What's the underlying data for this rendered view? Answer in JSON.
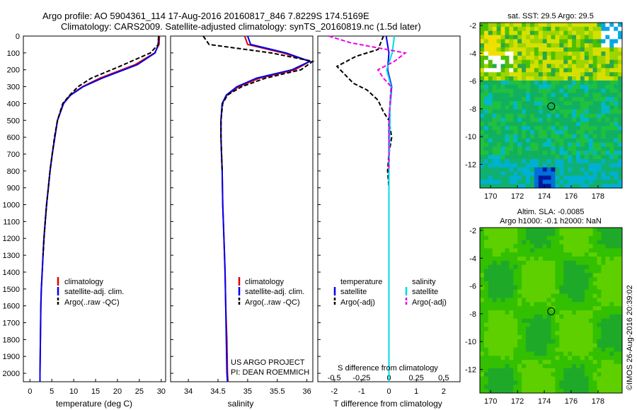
{
  "title": {
    "line1": "Argo profile: AO 5904361_114 17-Aug-2016 20160817_846 7.8229S 174.5169E",
    "line2": "Climatology: CARS2009. Satellite-adjusted climatology: synTS_20160819.nc (1.5d later)"
  },
  "credit": {
    "project": "US ARGO PROJECT",
    "pi": "PI: DEAN ROEMMICH",
    "imos": "©IMOS 26-Aug-2016 20:39:02"
  },
  "colors": {
    "climatology": "#dd0000",
    "satellite": "#0000ee",
    "argo": "#000000",
    "sal_satellite": "#00dddd",
    "sal_argo": "#ee00ee"
  },
  "chart_data": [
    {
      "type": "line",
      "name": "temperature-profile",
      "xlabel": "temperature (deg C)",
      "xlim": [
        -1.5,
        31
      ],
      "ylim": [
        2050,
        0
      ],
      "xticks": [
        0,
        5,
        10,
        15,
        20,
        25,
        30
      ],
      "yticks": [
        0,
        100,
        200,
        300,
        400,
        500,
        600,
        700,
        800,
        900,
        1000,
        1100,
        1200,
        1300,
        1400,
        1500,
        1600,
        1700,
        1800,
        1900,
        2000
      ],
      "legend": [
        "climatology",
        "satellite-adj. clim.",
        "Argo(..raw -QC)"
      ],
      "series": [
        {
          "name": "climatology",
          "x": [
            29.6,
            29.5,
            28.5,
            24,
            16,
            12,
            9.2,
            7.6,
            6.3,
            5.7,
            5.1,
            4.6,
            4.2,
            3.8,
            3.5,
            3.2,
            3.0,
            2.8,
            2.6,
            2.5,
            2.4,
            2.3,
            2.3
          ],
          "y": [
            0,
            50,
            100,
            170,
            250,
            300,
            350,
            400,
            500,
            600,
            700,
            800,
            900,
            1000,
            1100,
            1200,
            1300,
            1400,
            1500,
            1600,
            1800,
            2000,
            2050
          ]
        },
        {
          "name": "satellite-adj. clim.",
          "x": [
            29.4,
            29.3,
            28.6,
            24.5,
            16.5,
            12.2,
            9.3,
            7.7,
            6.3,
            5.7,
            5.1,
            4.6,
            4.2,
            3.8,
            3.5,
            3.2,
            3.0,
            2.8,
            2.6,
            2.5,
            2.4,
            2.3,
            2.3
          ],
          "y": [
            0,
            50,
            100,
            170,
            250,
            300,
            350,
            400,
            500,
            600,
            700,
            800,
            900,
            1000,
            1100,
            1200,
            1300,
            1400,
            1500,
            1600,
            1800,
            2000,
            2050
          ]
        },
        {
          "name": "Argo(..raw -QC)",
          "x": [
            29.4,
            29.3,
            27.5,
            20.5,
            14,
            11,
            9.1,
            7.5,
            6.3,
            5.6,
            5.1,
            4.6,
            4.2,
            3.8,
            3.5,
            3.2,
            3.0
          ],
          "y": [
            0,
            50,
            100,
            180,
            250,
            300,
            350,
            400,
            500,
            600,
            700,
            800,
            900,
            1000,
            1100,
            1200,
            1300
          ]
        }
      ]
    },
    {
      "type": "line",
      "name": "salinity-profile",
      "xlabel": "salinity",
      "xlim": [
        33.7,
        36.1
      ],
      "ylim": [
        2050,
        0
      ],
      "xticks": [
        34,
        34.5,
        35,
        35.5,
        36
      ],
      "legend": [
        "climatology",
        "satellite-adj. clim.",
        "Argo(..raw -QC)"
      ],
      "series": [
        {
          "name": "climatology",
          "x": [
            34.95,
            35.0,
            35.6,
            36.05,
            35.8,
            35.2,
            34.85,
            34.65,
            34.57,
            34.55,
            34.55,
            34.56,
            34.57,
            34.58,
            34.6,
            34.62,
            34.63,
            34.65,
            34.66,
            34.67
          ],
          "y": [
            0,
            50,
            100,
            150,
            200,
            250,
            300,
            350,
            400,
            500,
            600,
            700,
            800,
            1000,
            1200,
            1400,
            1600,
            1800,
            2000,
            2050
          ]
        },
        {
          "name": "satellite-adj. clim.",
          "x": [
            35.0,
            35.05,
            35.65,
            36.05,
            35.75,
            35.15,
            34.82,
            34.64,
            34.57,
            34.55,
            34.55,
            34.56,
            34.57,
            34.58,
            34.6,
            34.62,
            34.63,
            34.64,
            34.65,
            34.66
          ],
          "y": [
            0,
            50,
            100,
            150,
            200,
            250,
            300,
            350,
            400,
            500,
            600,
            700,
            800,
            1000,
            1200,
            1400,
            1600,
            1800,
            2000,
            2050
          ]
        },
        {
          "name": "Argo(..raw -QC)",
          "x": [
            34.25,
            34.35,
            35.4,
            36.1,
            35.9,
            35.3,
            34.9,
            34.66,
            34.58,
            34.55,
            34.55,
            34.56,
            34.57
          ],
          "y": [
            0,
            50,
            100,
            150,
            200,
            250,
            300,
            350,
            400,
            500,
            600,
            700,
            800
          ]
        }
      ]
    },
    {
      "type": "line",
      "name": "difference-profile",
      "xlabel": "T difference from climatology",
      "top_label": "S difference from climatology",
      "xlim": [
        -2.6,
        2.6
      ],
      "x2lim": [
        -0.65,
        0.65
      ],
      "ylim": [
        2050,
        0
      ],
      "xticks": [
        -2,
        -1,
        0,
        1,
        2
      ],
      "x2ticks": [
        -0.5,
        -0.25,
        0,
        0.25,
        0.5
      ],
      "legend_left": {
        "heading": "temperature",
        "items": [
          "satellite",
          "Argo(-adj)"
        ]
      },
      "legend_right": {
        "heading": "salinity",
        "items": [
          "satellite",
          "Argo(-adj)"
        ]
      },
      "series": [
        {
          "name": "temperature satellite",
          "x": [
            -0.1,
            0.0,
            -0.05,
            0.1,
            0.05,
            0.0,
            0.0,
            0.0,
            0.0,
            0.0
          ],
          "y": [
            0,
            100,
            200,
            300,
            400,
            500,
            800,
            1200,
            1600,
            2050
          ]
        },
        {
          "name": "temperature Argo(-adj)",
          "x": [
            -0.2,
            -0.4,
            -1.2,
            -1.9,
            -1.6,
            -1.3,
            -0.8,
            -0.4,
            -0.2,
            0.0,
            0.1,
            0.0,
            -0.05,
            0.0,
            0.0,
            0.0,
            0.0,
            0.0
          ],
          "y": [
            0,
            80,
            120,
            180,
            230,
            280,
            320,
            380,
            450,
            500,
            600,
            700,
            800,
            900,
            1000,
            1100,
            1200,
            1300
          ]
        },
        {
          "name": "salinity satellite",
          "x": [
            0.05,
            0.03,
            -0.02,
            0.02,
            0.01,
            0.01,
            0.0,
            0.0,
            0.0,
            0.0
          ],
          "y": [
            0,
            100,
            200,
            300,
            400,
            500,
            800,
            1200,
            1600,
            2050
          ]
        },
        {
          "name": "salinity Argo(-adj)",
          "x": [
            -0.55,
            -0.35,
            0.15,
            0.05,
            -0.1,
            -0.05,
            0.02,
            0.01,
            0.0,
            0.0,
            0.0
          ],
          "y": [
            0,
            40,
            100,
            150,
            200,
            250,
            300,
            400,
            500,
            600,
            800
          ]
        }
      ]
    },
    {
      "type": "heatmap",
      "name": "sst-map",
      "title": "sat. SST: 29.5 Argo: 29.5",
      "xlim": [
        169.2,
        179.8
      ],
      "ylim": [
        -13.7,
        -1.8
      ],
      "xticks": [
        170,
        172,
        174,
        176,
        178
      ],
      "yticks": [
        -2,
        -4,
        -6,
        -8,
        -10,
        -12
      ],
      "marker": {
        "x": 174.5169,
        "y": -7.8229
      }
    },
    {
      "type": "heatmap",
      "name": "sla-map",
      "title_line1": "Altim. SLA: -0.0085",
      "title_line2": "Argo h1000: -0.1 h2000: NaN",
      "xlim": [
        169.2,
        179.8
      ],
      "ylim": [
        -13.7,
        -1.8
      ],
      "xticks": [
        170,
        172,
        174,
        176,
        178
      ],
      "yticks": [
        -2,
        -4,
        -6,
        -8,
        -10,
        -12
      ],
      "marker": {
        "x": 174.5169,
        "y": -7.8229
      }
    }
  ]
}
